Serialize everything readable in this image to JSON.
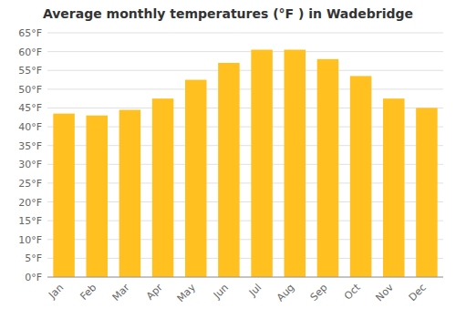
{
  "chart_data": {
    "type": "bar",
    "title": "Average monthly temperatures (°F ) in Wadebridge",
    "categories": [
      "Jan",
      "Feb",
      "Mar",
      "Apr",
      "May",
      "Jun",
      "Jul",
      "Aug",
      "Sep",
      "Oct",
      "Nov",
      "Dec"
    ],
    "values": [
      43.5,
      43.0,
      44.5,
      47.5,
      52.5,
      57.0,
      60.5,
      60.5,
      58.0,
      53.5,
      47.5,
      45.0
    ],
    "color": "#FFC020",
    "ylim": [
      0,
      65
    ],
    "yticks": [
      {
        "value": 0,
        "label": "0°F"
      },
      {
        "value": 5,
        "label": "5°F"
      },
      {
        "value": 10,
        "label": "10°F"
      },
      {
        "value": 15,
        "label": "15°F"
      },
      {
        "value": 20,
        "label": "20°F"
      },
      {
        "value": 25,
        "label": "25°F"
      },
      {
        "value": 30,
        "label": "30°F"
      },
      {
        "value": 35,
        "label": "35°F"
      },
      {
        "value": 40,
        "label": "40°F"
      },
      {
        "value": 45,
        "label": "45°F"
      },
      {
        "value": 50,
        "label": "50°F"
      },
      {
        "value": 55,
        "label": "55°F"
      },
      {
        "value": 60,
        "label": "60°F"
      },
      {
        "value": 65,
        "label": "65°F"
      }
    ],
    "grid": true
  }
}
